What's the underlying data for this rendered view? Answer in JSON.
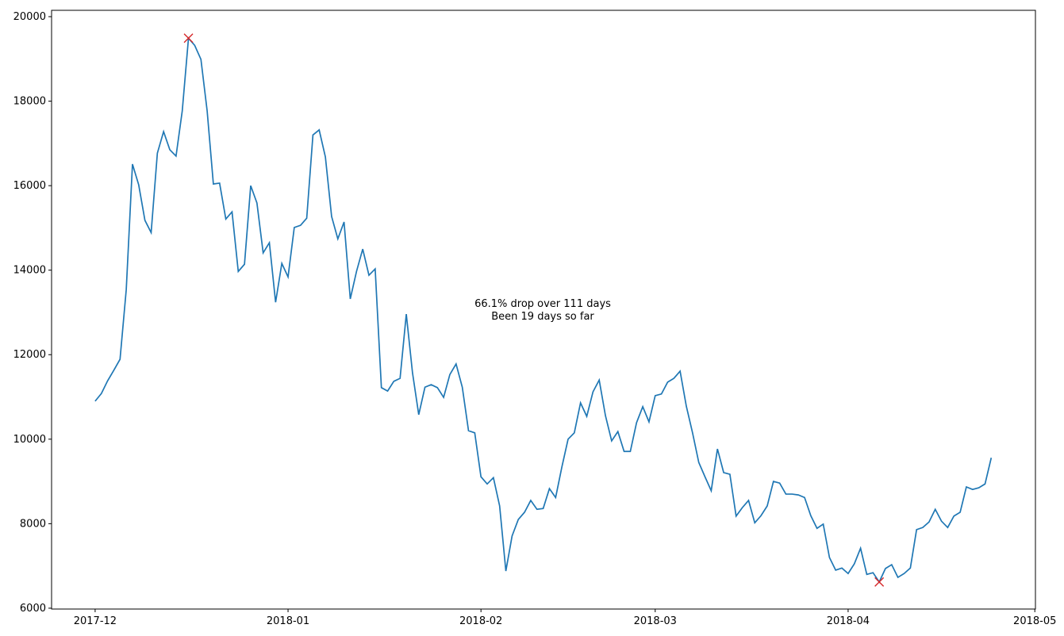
{
  "chart_data": {
    "type": "line",
    "annotation": [
      "66.1% drop over 111 days",
      "Been 19 days so far"
    ],
    "x": [
      0,
      1,
      2,
      3,
      4,
      5,
      6,
      7,
      8,
      9,
      10,
      11,
      12,
      13,
      14,
      15,
      16,
      17,
      18,
      19,
      20,
      21,
      22,
      23,
      24,
      25,
      26,
      27,
      28,
      29,
      30,
      31,
      32,
      33,
      34,
      35,
      36,
      37,
      38,
      39,
      40,
      41,
      42,
      43,
      44,
      45,
      46,
      47,
      48,
      49,
      50,
      51,
      52,
      53,
      54,
      55,
      56,
      57,
      58,
      59,
      60,
      61,
      62,
      63,
      64,
      65,
      66,
      67,
      68,
      69,
      70,
      71,
      72,
      73,
      74,
      75,
      76,
      77,
      78,
      79,
      80,
      81,
      82,
      83,
      84,
      85,
      86,
      87,
      88,
      89,
      90,
      91,
      92,
      93,
      94,
      95,
      96,
      97,
      98,
      99,
      100,
      101,
      102,
      103,
      104,
      105,
      106,
      107,
      108,
      109,
      110,
      111,
      112,
      113,
      114,
      115,
      116,
      117,
      118,
      119,
      120,
      121,
      122,
      123,
      124,
      125,
      126,
      127,
      128,
      129,
      130,
      131,
      132,
      133,
      134,
      135,
      136,
      137,
      138,
      139,
      140,
      141,
      142,
      143,
      144
    ],
    "series": [
      {
        "color": "#1f77b4",
        "values": [
          10900,
          11080,
          11380,
          11630,
          11890,
          13540,
          16510,
          16020,
          15180,
          14890,
          16770,
          17280,
          16850,
          16700,
          17770,
          19490,
          19320,
          18990,
          17770,
          16040,
          16060,
          15210,
          15380,
          13970,
          14140,
          16000,
          15590,
          14410,
          14650,
          13240,
          14160,
          13840,
          15010,
          15060,
          15230,
          17200,
          17320,
          16680,
          15270,
          14740,
          15140,
          13320,
          13970,
          14500,
          13880,
          14030,
          11220,
          11140,
          11370,
          11440,
          12960,
          11570,
          10580,
          11230,
          11290,
          11220,
          10990,
          11530,
          11780,
          11230,
          10200,
          10150,
          9110,
          8940,
          9090,
          8420,
          6880,
          7710,
          8100,
          8270,
          8550,
          8340,
          8360,
          8830,
          8620,
          9340,
          10000,
          10150,
          10860,
          10540,
          11120,
          11400,
          10560,
          9960,
          10180,
          9710,
          9710,
          10390,
          10770,
          10410,
          11030,
          11070,
          11350,
          11440,
          11610,
          10780,
          10150,
          9450,
          9110,
          8780,
          9770,
          9210,
          9170,
          8180,
          8380,
          8550,
          8020,
          8190,
          8420,
          9000,
          8960,
          8700,
          8700,
          8680,
          8620,
          8190,
          7890,
          7990,
          7200,
          6900,
          6950,
          6820,
          7050,
          7420,
          6800,
          6840,
          6620,
          6940,
          7030,
          6730,
          6820,
          6950,
          7860,
          7910,
          8040,
          8340,
          8060,
          7910,
          8180,
          8270,
          8870,
          8810,
          8850,
          8940,
          9560
        ]
      }
    ],
    "markers": {
      "color": "#d62728",
      "x": [
        15,
        126
      ],
      "values": [
        19490,
        6620
      ]
    },
    "xlim": [
      -7,
      151.1
    ],
    "xticks": [
      {
        "value": 0,
        "label": "2017-12"
      },
      {
        "value": 31,
        "label": "2018-01"
      },
      {
        "value": 62,
        "label": "2018-02"
      },
      {
        "value": 90,
        "label": "2018-03"
      },
      {
        "value": 121,
        "label": "2018-04"
      },
      {
        "value": 151,
        "label": "2018-05"
      }
    ],
    "ylim": [
      5980,
      20150
    ],
    "yticks": [
      6000,
      8000,
      10000,
      12000,
      14000,
      16000,
      18000,
      20000
    ]
  }
}
